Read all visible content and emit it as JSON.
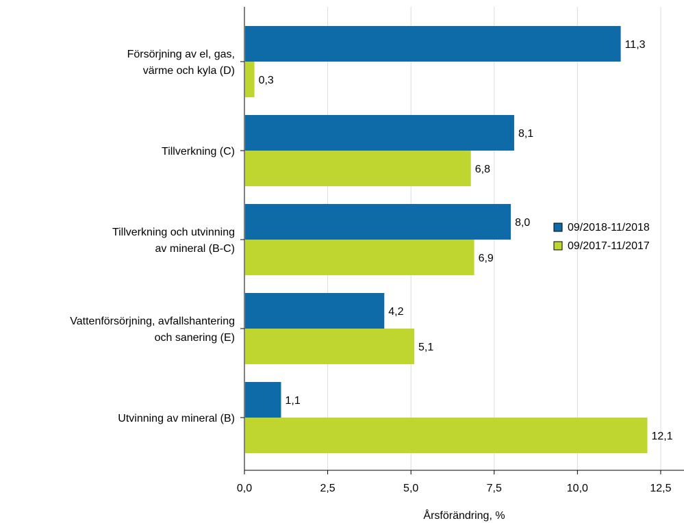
{
  "chart_data": {
    "type": "bar",
    "orientation": "horizontal",
    "categories": [
      [
        "Försörjning av el, gas,",
        "värme och kyla (D)"
      ],
      [
        "Tillverkning (C)"
      ],
      [
        "Tillverkning och utvinning",
        "av mineral (B-C)"
      ],
      [
        "Vattenförsörjning, avfallshantering",
        "och sanering (E)"
      ],
      [
        "Utvinning av mineral (B)"
      ]
    ],
    "series": [
      {
        "name": "09/2018-11/2018",
        "color": "#0f6aa8",
        "values": [
          11.3,
          8.1,
          8.0,
          4.2,
          1.1
        ],
        "labels": [
          "11,3",
          "8,1",
          "8,0",
          "4,2",
          "1,1"
        ]
      },
      {
        "name": "09/2017-11/2017",
        "color": "#bed62f",
        "values": [
          0.3,
          6.8,
          6.9,
          5.1,
          12.1
        ],
        "labels": [
          "0,3",
          "6,8",
          "6,9",
          "5,1",
          "12,1"
        ]
      }
    ],
    "xlabel": "Årsförändring, %",
    "ylabel": "",
    "xlim": [
      0,
      13.2
    ],
    "ticks": [
      0,
      2.5,
      5,
      7.5,
      10,
      12.5
    ],
    "tick_labels": [
      "0,0",
      "2,5",
      "5,0",
      "7,5",
      "10,0",
      "12,5"
    ],
    "grid": true,
    "legend_position": "right"
  }
}
